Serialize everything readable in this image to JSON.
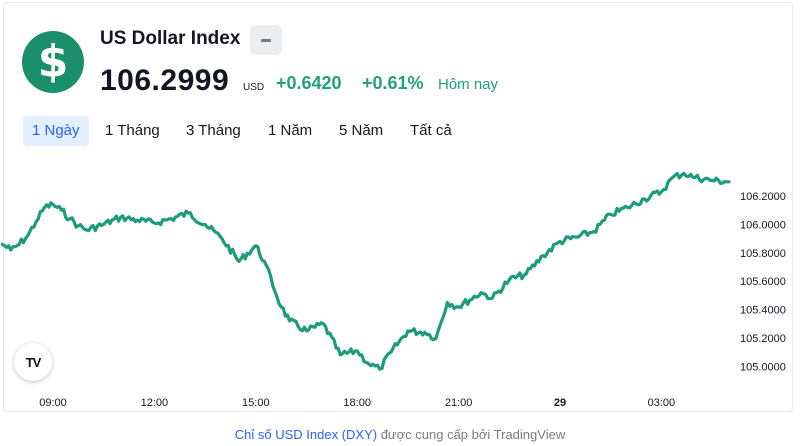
{
  "header": {
    "title": "US Dollar Index",
    "price": "106.2999",
    "currency": "USD",
    "change": "+0.6420",
    "change_pct": "+0.61%",
    "period_label": "Hôm nay",
    "logo_symbol": "$",
    "logo_icon": "dollar-icon",
    "badge_icon": "minus-icon"
  },
  "tabs": [
    {
      "label": "1 Ngày",
      "active": true
    },
    {
      "label": "1 Tháng",
      "active": false
    },
    {
      "label": "3 Tháng",
      "active": false
    },
    {
      "label": "1 Năm",
      "active": false
    },
    {
      "label": "5 Năm",
      "active": false
    },
    {
      "label": "Tất cả",
      "active": false
    }
  ],
  "colors": {
    "accent": "#22a079",
    "line": "#1e9b7a",
    "logo_bg": "#1a8f6a",
    "link": "#2962ff"
  },
  "chart_data": {
    "type": "line",
    "y_ticks": [
      "106.2000",
      "106.0000",
      "105.8000",
      "105.6000",
      "105.4000",
      "105.2000",
      "105.0000"
    ],
    "x_ticks": [
      "09:00",
      "12:00",
      "15:00",
      "18:00",
      "21:00",
      "29",
      "03:00"
    ],
    "ylim": [
      104.94,
      106.42
    ],
    "grid": false,
    "series": [
      {
        "points": [
          [
            "07:30",
            105.86
          ],
          [
            "07:45",
            105.82
          ],
          [
            "08:00",
            105.86
          ],
          [
            "08:15",
            105.92
          ],
          [
            "08:30",
            106.02
          ],
          [
            "08:45",
            106.12
          ],
          [
            "09:00",
            106.14
          ],
          [
            "09:15",
            106.1
          ],
          [
            "09:30",
            106.04
          ],
          [
            "09:45",
            105.99
          ],
          [
            "10:00",
            105.96
          ],
          [
            "10:30",
            106.0
          ],
          [
            "11:00",
            106.05
          ],
          [
            "11:30",
            106.03
          ],
          [
            "12:00",
            106.01
          ],
          [
            "12:30",
            106.04
          ],
          [
            "13:00",
            106.08
          ],
          [
            "13:30",
            106.0
          ],
          [
            "14:00",
            105.9
          ],
          [
            "14:30",
            105.74
          ],
          [
            "15:00",
            105.85
          ],
          [
            "15:15",
            105.74
          ],
          [
            "15:45",
            105.42
          ],
          [
            "16:00",
            105.32
          ],
          [
            "16:30",
            105.25
          ],
          [
            "17:00",
            105.3
          ],
          [
            "17:30",
            105.08
          ],
          [
            "18:00",
            105.11
          ],
          [
            "18:20",
            105.02
          ],
          [
            "18:40",
            104.98
          ],
          [
            "19:00",
            105.1
          ],
          [
            "19:30",
            105.25
          ],
          [
            "20:00",
            105.24
          ],
          [
            "20:20",
            105.2
          ],
          [
            "20:40",
            105.45
          ],
          [
            "21:00",
            105.42
          ],
          [
            "21:40",
            105.52
          ],
          [
            "22:00",
            105.48
          ],
          [
            "22:30",
            105.61
          ],
          [
            "23:00",
            105.65
          ],
          [
            "23:30",
            105.78
          ],
          [
            "00:00",
            105.88
          ],
          [
            "00:30",
            105.91
          ],
          [
            "01:00",
            105.95
          ],
          [
            "01:30",
            106.07
          ],
          [
            "02:00",
            106.12
          ],
          [
            "02:30",
            106.18
          ],
          [
            "03:00",
            106.23
          ],
          [
            "03:20",
            106.33
          ],
          [
            "03:40",
            106.36
          ],
          [
            "04:00",
            106.33
          ],
          [
            "04:30",
            106.31
          ],
          [
            "05:00",
            106.3
          ]
        ]
      }
    ]
  },
  "footer": {
    "link_text": "Chỉ số USD Index (DXY)",
    "rest_text": " được cung cấp bởi TradingView"
  },
  "tv_logo": "TV"
}
